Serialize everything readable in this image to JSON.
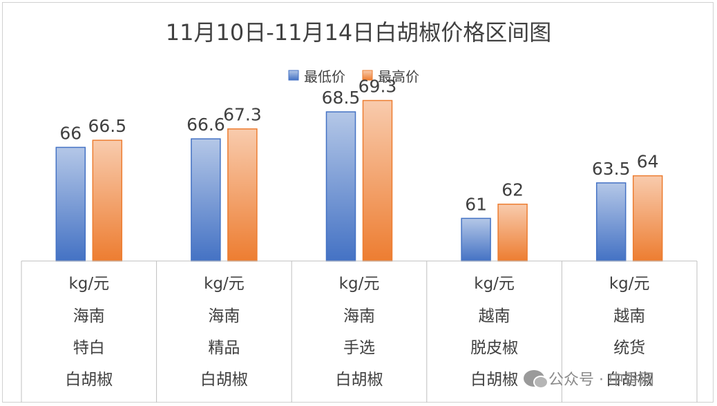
{
  "chart_data": {
    "type": "bar",
    "title": "11月10日-11月14日白胡椒价格区间图",
    "ylim": [
      58,
      72
    ],
    "legend_position": "top",
    "grid": false,
    "categories": [
      [
        "kg/元",
        "海南",
        "特白",
        "白胡椒"
      ],
      [
        "kg/元",
        "海南",
        "精品",
        "白胡椒"
      ],
      [
        "kg/元",
        "海南",
        "手选",
        "白胡椒"
      ],
      [
        "kg/元",
        "越南",
        "脱皮椒",
        "白胡椒"
      ],
      [
        "kg/元",
        "越南",
        "统货",
        "白胡椒"
      ]
    ],
    "series": [
      {
        "name": "最低价",
        "values": [
          66,
          66.6,
          68.5,
          61,
          63.5
        ],
        "color": "#4472c4"
      },
      {
        "name": "最高价",
        "values": [
          66.5,
          67.3,
          69.3,
          62,
          64
        ],
        "color": "#ed7d31"
      }
    ]
  },
  "watermark": {
    "text": "公众号 · 中香网",
    "icon": "wechat-icon"
  }
}
